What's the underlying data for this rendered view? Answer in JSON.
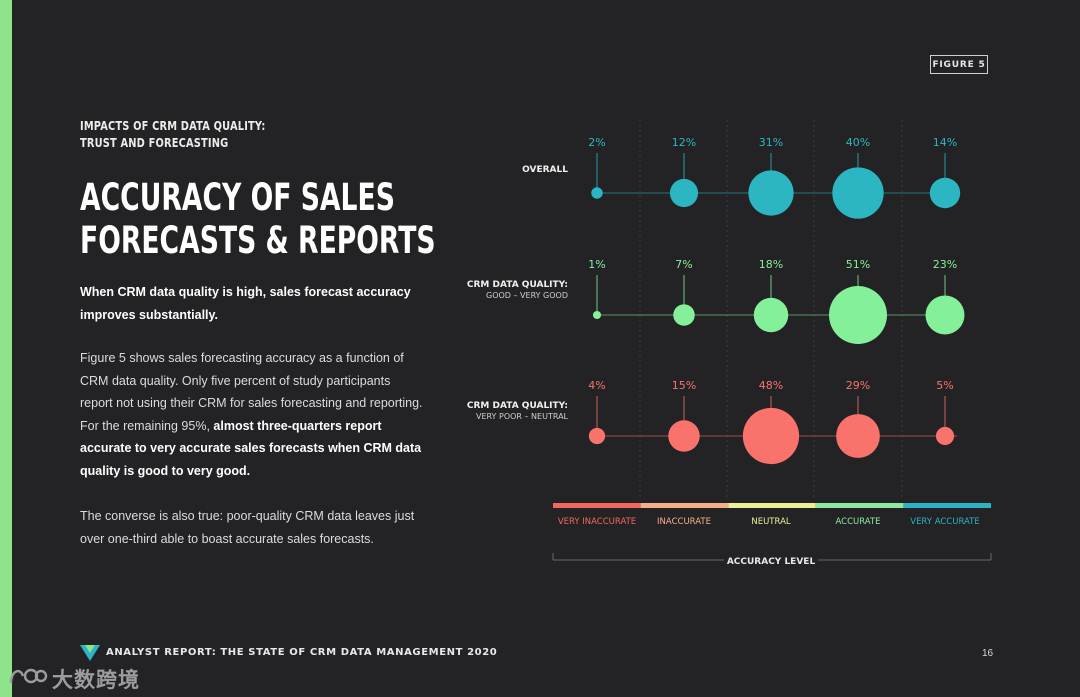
{
  "figure_label": "FIGURE 5",
  "kicker": [
    "IMPACTS OF CRM DATA QUALITY:",
    "TRUST AND FORECASTING"
  ],
  "title": [
    "ACCURACY OF SALES",
    "FORECASTS & REPORTS"
  ],
  "lead": "When CRM data quality is high, sales forecast accuracy improves substantially.",
  "para2": {
    "plain": "Figure 5 shows sales forecasting accuracy as a function of CRM data quality. Only five percent of study participants report not using their CRM for sales forecasting and reporting. For the remaining 95%, ",
    "bold": "almost three-quarters report accurate to very accurate sales forecasts when CRM data quality is good to very good."
  },
  "para3": "The converse is also true: poor-quality CRM data leaves just over one-third able to boast accurate sales forecasts.",
  "footer": {
    "text": "ANALYST REPORT: THE STATE OF CRM DATA MANAGEMENT 2020",
    "page": "16"
  },
  "watermark": "大数跨境",
  "colors": {
    "background": "#232325",
    "accent": "#8fe38a",
    "overall": "#2bb6c2",
    "good": "#85f09a",
    "poor": "#f9726b",
    "scale": [
      "#f46660",
      "#f5b08a",
      "#ecef96",
      "#8ee8a0",
      "#2bb3c5"
    ]
  },
  "chart_data": {
    "type": "bubble",
    "categories": [
      "VERY INACCURATE",
      "INACCURATE",
      "NEUTRAL",
      "ACCURATE",
      "VERY ACCURATE"
    ],
    "xlabel": "ACCURACY LEVEL",
    "series": [
      {
        "label": "OVERALL",
        "sublabel": "",
        "color": "#2bb6c2",
        "values": [
          2,
          12,
          31,
          40,
          14
        ]
      },
      {
        "label": "CRM DATA QUALITY:",
        "sublabel": "GOOD – VERY GOOD",
        "color": "#85f09a",
        "values": [
          1,
          7,
          18,
          51,
          23
        ]
      },
      {
        "label": "CRM DATA QUALITY:",
        "sublabel": "VERY POOR – NEUTRAL",
        "color": "#f9726b",
        "values": [
          4,
          15,
          48,
          29,
          5
        ]
      }
    ],
    "value_suffix": "%"
  }
}
